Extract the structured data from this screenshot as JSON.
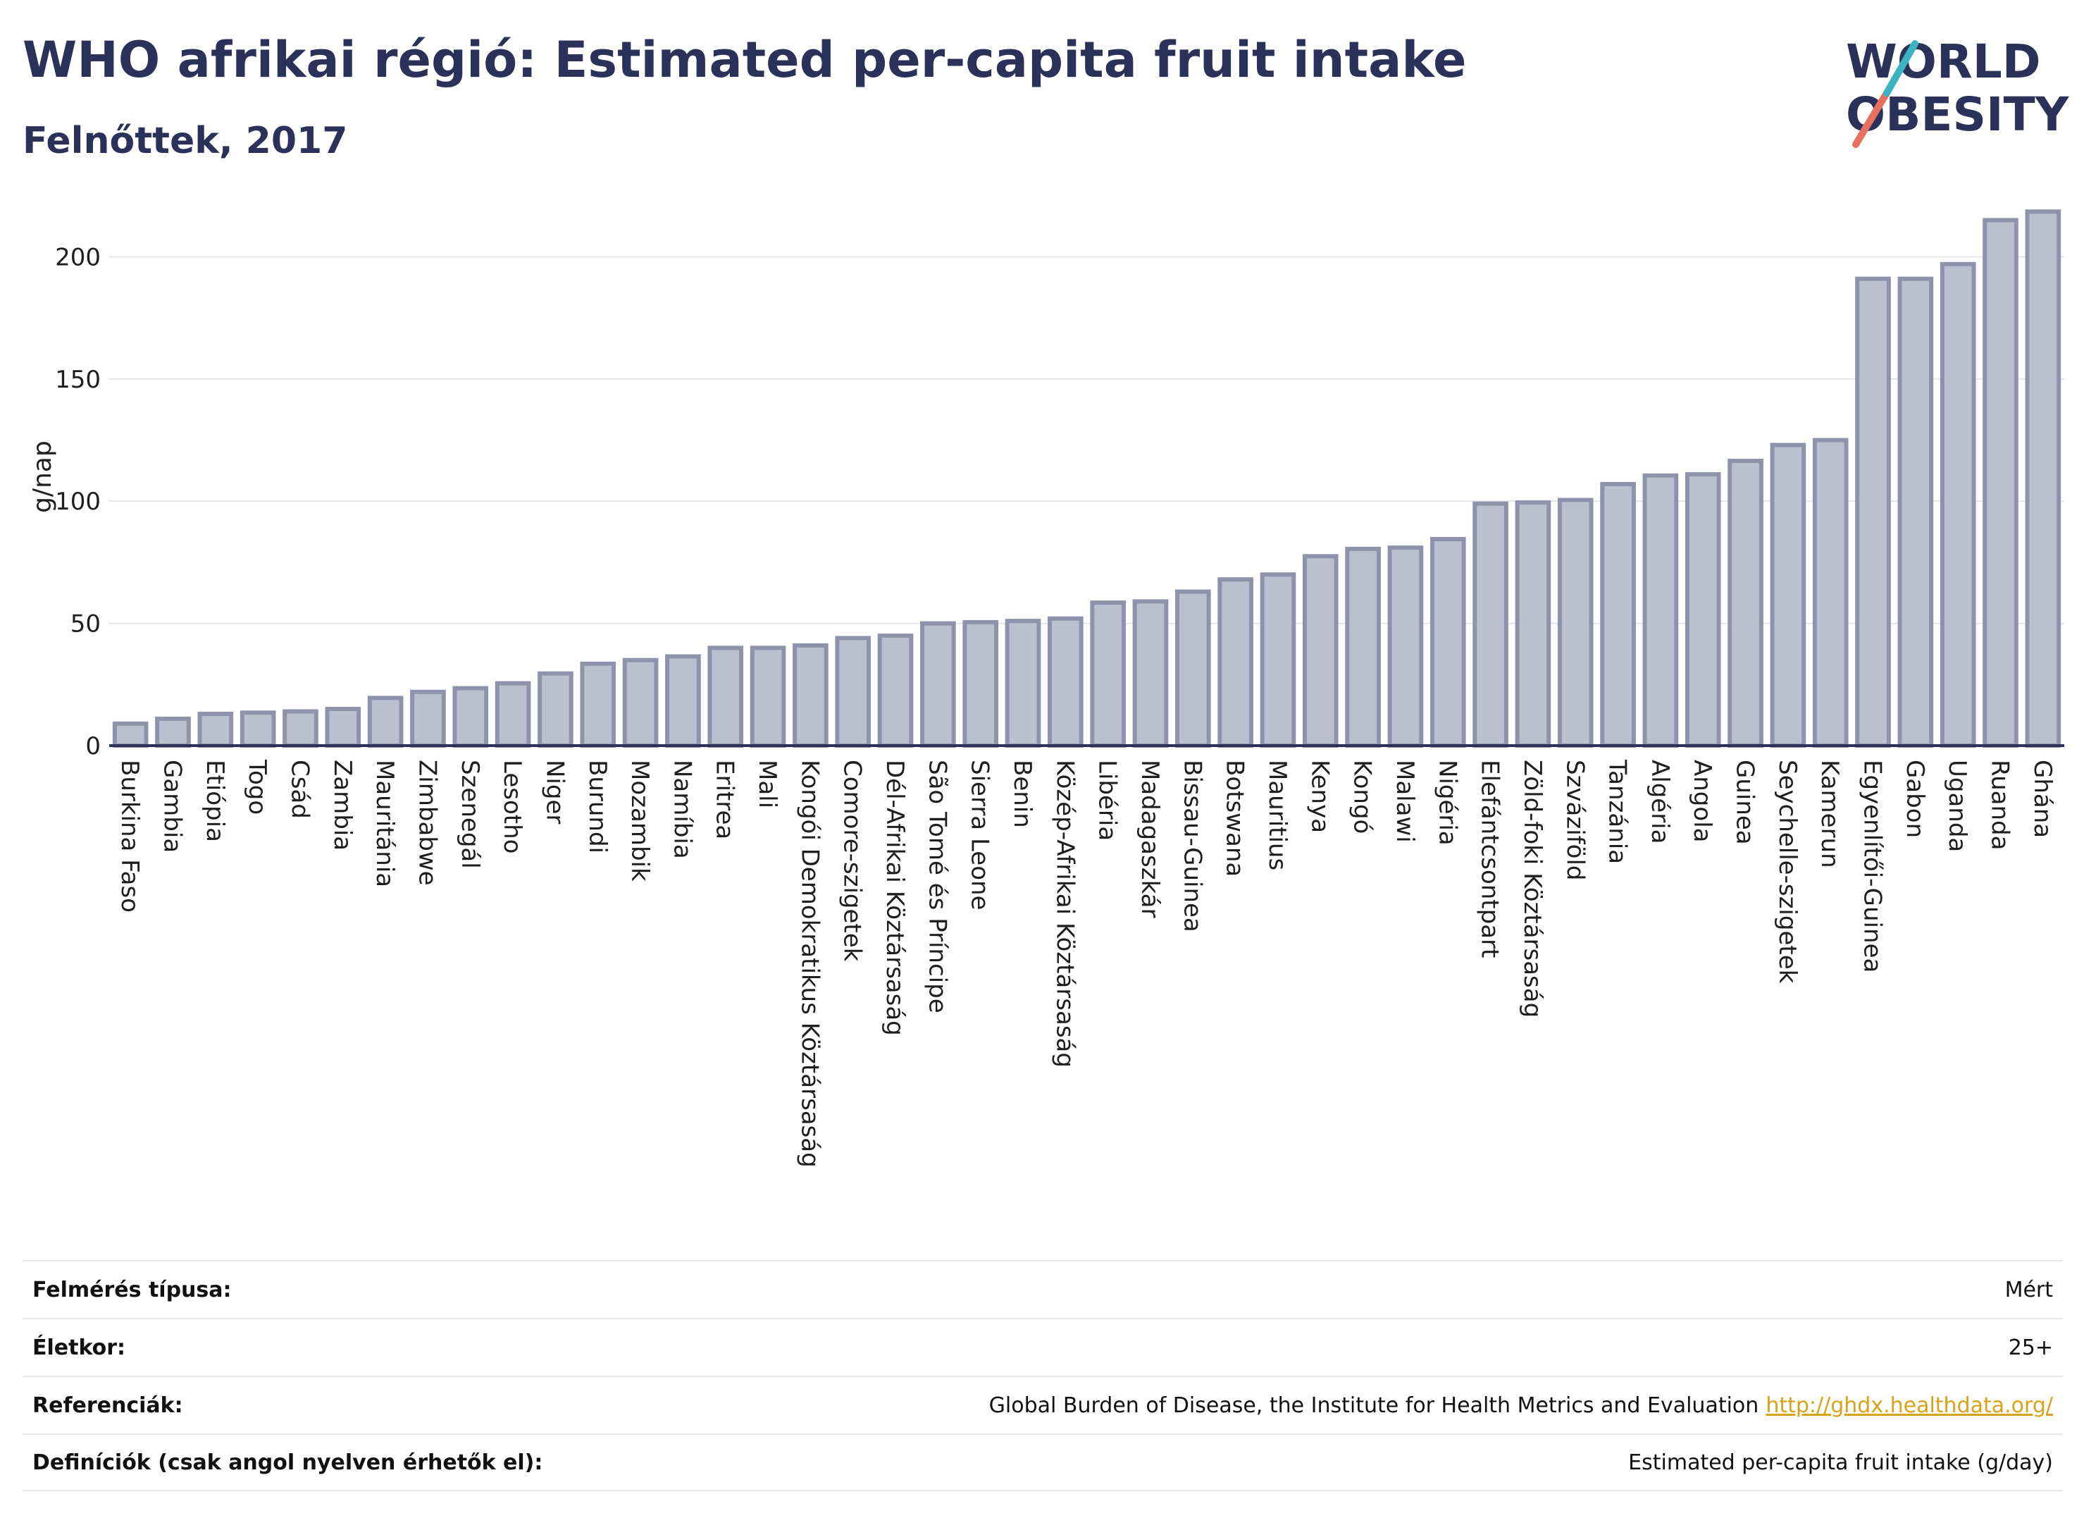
{
  "header": {
    "title": "WHO afrikai régió: Estimated per-capita fruit intake",
    "subtitle": "Felnőttek, 2017"
  },
  "logo": {
    "line1": "WORLD",
    "line2": "OBESITY",
    "colors": {
      "text": "#2a3259",
      "teal": "#3bb3c3",
      "coral": "#e8705e"
    }
  },
  "chart_data": {
    "type": "bar",
    "title": "WHO afrikai régió: Estimated per-capita fruit intake",
    "subtitle": "Felnőttek, 2017",
    "xlabel": "",
    "ylabel": "g/nap",
    "ylim": [
      0,
      220
    ],
    "yticks": [
      0,
      50,
      100,
      150,
      200
    ],
    "grid": true,
    "bar_color": "#bcc0ce",
    "bar_edge_color": "#8e93ab",
    "categories": [
      "Burkina Faso",
      "Gambia",
      "Etiópia",
      "Togo",
      "Csád",
      "Zambia",
      "Mauritánia",
      "Zimbabwe",
      "Szenegál",
      "Lesotho",
      "Niger",
      "Burundi",
      "Mozambik",
      "Namíbia",
      "Eritrea",
      "Mali",
      "Kongói Demokratikus Köztársaság",
      "Comore-szigetek",
      "Dél-Afrikai Köztársaság",
      "São Tomé és Príncipe",
      "Sierra Leone",
      "Benin",
      "Közép-Afrikai Köztársaság",
      "Libéria",
      "Madagaszkár",
      "Bissau-Guinea",
      "Botswana",
      "Mauritius",
      "Kenya",
      "Kongó",
      "Malawi",
      "Nigéria",
      "Elefántcsontpart",
      "Zöld-foki Köztársaság",
      "Szváziföld",
      "Tanzánia",
      "Algéria",
      "Angola",
      "Guinea",
      "Seychelle-szigetek",
      "Kamerun",
      "Egyenlítői-Guinea",
      "Gabon",
      "Uganda",
      "Ruanda",
      "Ghána"
    ],
    "values": [
      9,
      11,
      13,
      13.5,
      14,
      15,
      19.5,
      22,
      23.5,
      25.5,
      29.5,
      33.5,
      35,
      36.5,
      40,
      40,
      41,
      44,
      45,
      50,
      50.5,
      51,
      52,
      58.5,
      59,
      63,
      68,
      70,
      77.5,
      80.5,
      81,
      84.5,
      99,
      99.5,
      100.5,
      107,
      110.5,
      111,
      116.5,
      123,
      125,
      191,
      191,
      197,
      215,
      218.5
    ]
  },
  "meta": {
    "rows": [
      {
        "label": "Felmérés típusa:",
        "value": "Mért"
      },
      {
        "label": "Életkor:",
        "value": "25+"
      },
      {
        "label": "Referenciák:",
        "value": "Global Burden of Disease, the Institute for Health Metrics and Evaluation",
        "link": "http://ghdx.healthdata.org/"
      },
      {
        "label": "Definíciók (csak angol nyelven érhetők el):",
        "value": "Estimated per-capita fruit intake (g/day)"
      }
    ]
  }
}
